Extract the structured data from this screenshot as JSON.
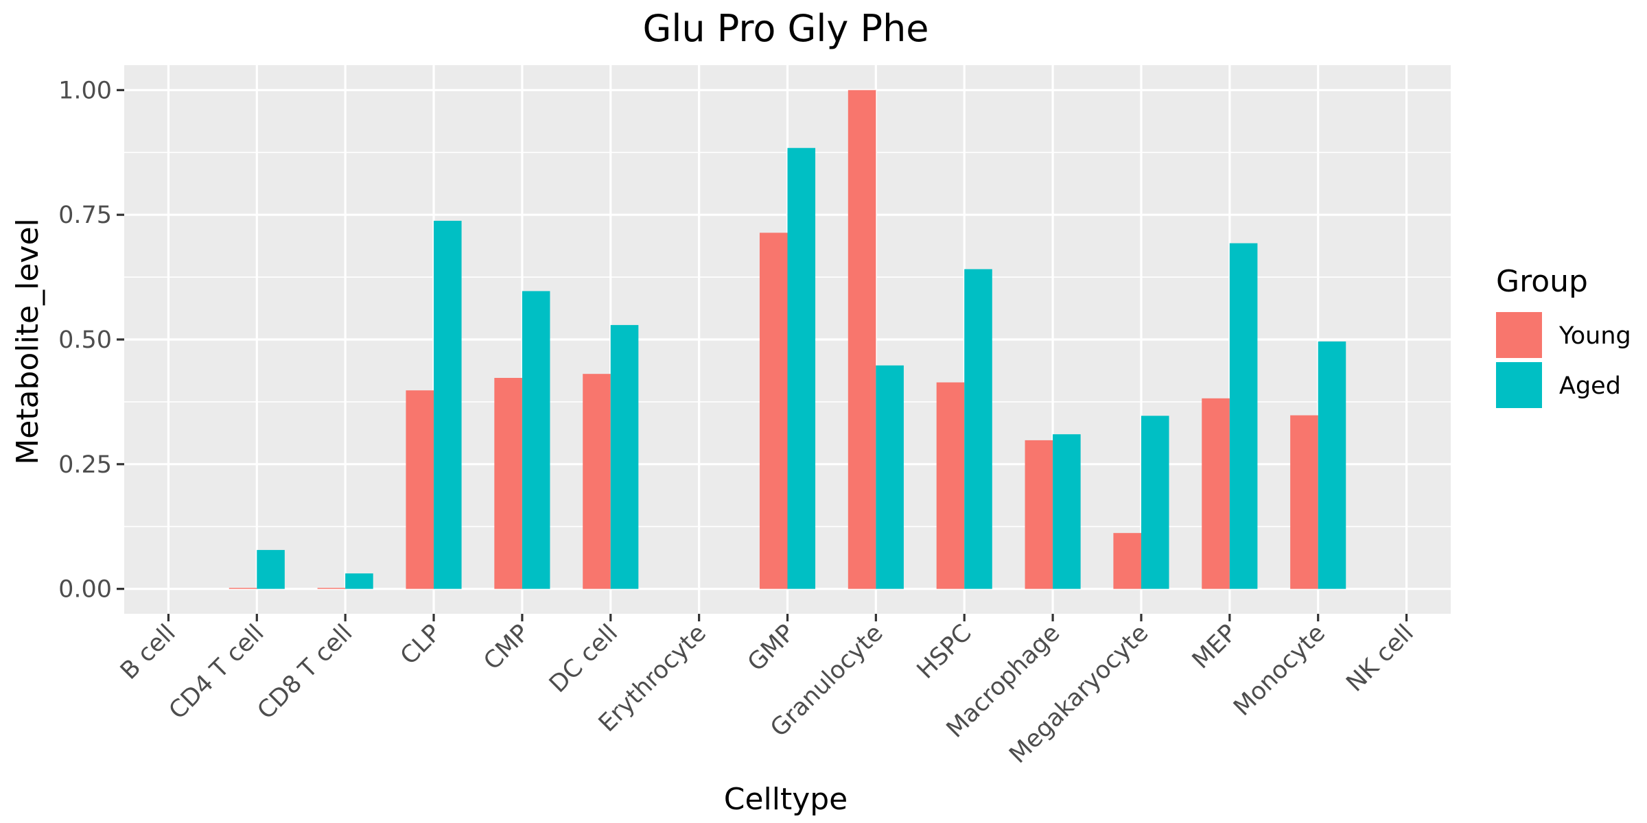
{
  "chart_data": {
    "type": "bar",
    "title": "Glu Pro Gly Phe",
    "xlabel": "Celltype",
    "ylabel": "Metabolite_level",
    "categories": [
      "B cell",
      "CD4 T cell",
      "CD8 T cell",
      "CLP",
      "CMP",
      "DC cell",
      "Erythrocyte",
      "GMP",
      "Granulocyte",
      "HSPC",
      "Macrophage",
      "Megakaryocyte",
      "MEP",
      "Monocyte",
      "NK cell"
    ],
    "series": [
      {
        "name": "Young",
        "color": "#F8766D",
        "values": [
          0,
          0.002,
          0.002,
          0.398,
          0.423,
          0.431,
          0,
          0.714,
          1.0,
          0.414,
          0.298,
          0.112,
          0.382,
          0.348,
          0
        ]
      },
      {
        "name": "Aged",
        "color": "#00BFC4",
        "values": [
          0,
          0.078,
          0.031,
          0.738,
          0.597,
          0.529,
          0,
          0.884,
          0.448,
          0.641,
          0.31,
          0.347,
          0.693,
          0.496,
          0
        ]
      }
    ],
    "ylim": [
      -0.05,
      1.05
    ],
    "yticks": [
      0,
      0.25,
      0.5,
      0.75,
      1.0
    ],
    "ytick_labels": [
      "0.00",
      "0.25",
      "0.50",
      "0.75",
      "1.00"
    ],
    "grid": true,
    "panel_color": "#EBEBEB",
    "legend": {
      "title": "Group",
      "position": "right"
    }
  }
}
